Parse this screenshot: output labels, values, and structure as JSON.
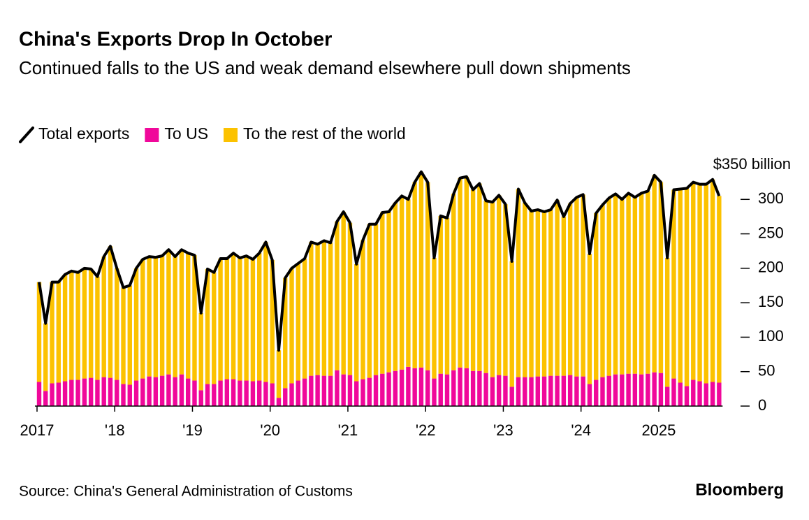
{
  "chart_data": {
    "type": "bar",
    "title": "China's Exports Drop In October",
    "subtitle": "Continued falls to the US and weak demand elsewhere pull down shipments",
    "source": "Source: China's General Administration of Customs",
    "brand": "Bloomberg",
    "stacked": true,
    "categories": [
      "2017",
      null,
      null,
      null,
      null,
      null,
      null,
      null,
      null,
      null,
      null,
      null,
      "'18",
      null,
      null,
      null,
      null,
      null,
      null,
      null,
      null,
      null,
      null,
      null,
      "'19",
      null,
      null,
      null,
      null,
      null,
      null,
      null,
      null,
      null,
      null,
      null,
      "'20",
      null,
      null,
      null,
      null,
      null,
      null,
      null,
      null,
      null,
      null,
      null,
      "'21",
      null,
      null,
      null,
      null,
      null,
      null,
      null,
      null,
      null,
      null,
      null,
      "'22",
      null,
      null,
      null,
      null,
      null,
      null,
      null,
      null,
      null,
      null,
      null,
      "'23",
      null,
      null,
      null,
      null,
      null,
      null,
      null,
      null,
      null,
      null,
      null,
      "'24",
      null,
      null,
      null,
      null,
      null,
      null,
      null,
      null,
      null,
      null,
      null,
      "2025",
      null,
      null,
      null,
      null,
      null,
      null,
      null,
      null,
      null
    ],
    "series": [
      {
        "name": "Total exports",
        "type": "line",
        "color": "#000000",
        "values": [
          180,
          120,
          180,
          180,
          191,
          196,
          194,
          200,
          199,
          188,
          217,
          232,
          200,
          172,
          175,
          200,
          213,
          217,
          216,
          218,
          227,
          217,
          227,
          222,
          219,
          135,
          199,
          194,
          214,
          214,
          222,
          215,
          218,
          213,
          222,
          238,
          212,
          81,
          186,
          200,
          207,
          214,
          238,
          235,
          240,
          237,
          268,
          282,
          266,
          206,
          241,
          264,
          264,
          281,
          282,
          295,
          305,
          300,
          325,
          340,
          325,
          215,
          276,
          273,
          308,
          331,
          333,
          314,
          323,
          298,
          296,
          306,
          293,
          210,
          315,
          295,
          283,
          285,
          282,
          285,
          299,
          275,
          294,
          303,
          307,
          221,
          280,
          292,
          302,
          308,
          300,
          309,
          303,
          309,
          312,
          335,
          325,
          215,
          314,
          315,
          316,
          325,
          322,
          322,
          329,
          305
        ]
      },
      {
        "name": "To US",
        "type": "bar",
        "color": "#f0089a",
        "values": [
          35,
          22,
          33,
          34,
          36,
          38,
          38,
          40,
          41,
          38,
          42,
          41,
          38,
          32,
          31,
          37,
          40,
          43,
          42,
          44,
          46,
          42,
          46,
          40,
          37,
          23,
          32,
          32,
          37,
          39,
          39,
          37,
          37,
          36,
          37,
          35,
          33,
          12,
          26,
          33,
          37,
          40,
          44,
          45,
          44,
          44,
          52,
          46,
          45,
          36,
          39,
          41,
          45,
          47,
          49,
          51,
          53,
          57,
          55,
          56,
          52,
          40,
          47,
          46,
          52,
          56,
          55,
          51,
          51,
          48,
          42,
          45,
          44,
          28,
          42,
          42,
          42,
          43,
          43,
          44,
          44,
          44,
          45,
          43,
          43,
          32,
          38,
          42,
          44,
          46,
          46,
          47,
          47,
          46,
          47,
          49,
          48,
          28,
          40,
          34,
          29,
          38,
          36,
          33,
          35,
          34
        ]
      },
      {
        "name": "To the rest of the world",
        "type": "bar",
        "color": "#fcc200",
        "values": [
          145,
          98,
          147,
          146,
          155,
          158,
          156,
          160,
          158,
          150,
          175,
          191,
          162,
          140,
          144,
          163,
          173,
          174,
          174,
          174,
          181,
          175,
          181,
          182,
          182,
          112,
          167,
          162,
          177,
          175,
          183,
          178,
          181,
          177,
          185,
          203,
          179,
          69,
          160,
          167,
          170,
          174,
          194,
          190,
          196,
          193,
          216,
          236,
          221,
          170,
          202,
          223,
          219,
          234,
          233,
          244,
          252,
          243,
          270,
          284,
          273,
          175,
          229,
          227,
          256,
          275,
          278,
          263,
          272,
          250,
          254,
          261,
          249,
          182,
          273,
          253,
          241,
          242,
          239,
          241,
          255,
          231,
          249,
          260,
          264,
          189,
          242,
          250,
          258,
          262,
          254,
          262,
          256,
          263,
          265,
          286,
          277,
          187,
          274,
          281,
          287,
          287,
          286,
          289,
          294,
          271
        ]
      }
    ],
    "ylim": [
      0,
      350
    ],
    "yticks": [
      0,
      50,
      100,
      150,
      200,
      250,
      300,
      {
        "value": 350,
        "label": "$350 billion"
      }
    ],
    "grid": false
  }
}
